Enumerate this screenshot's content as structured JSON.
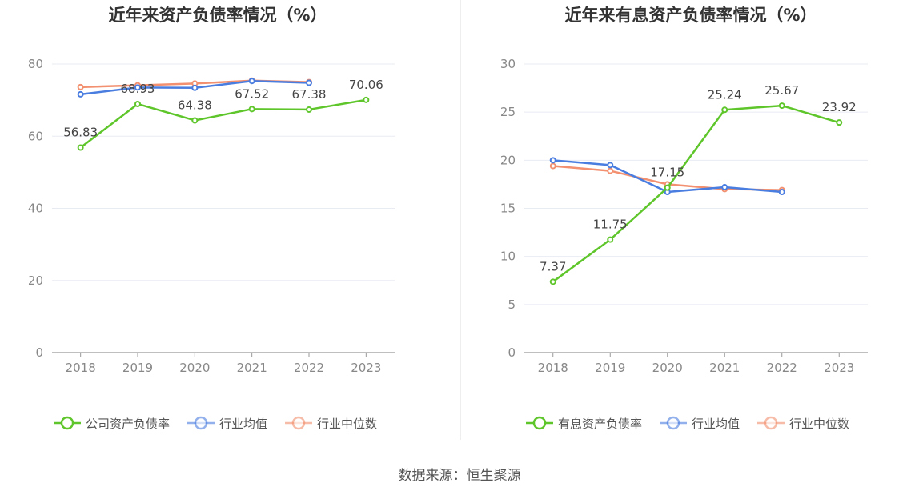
{
  "source_text": "数据来源：恒生聚源",
  "colors": {
    "company": "#5ec62a",
    "avg": "#4a7de0",
    "median": "#f3906f",
    "grid": "#e8ebf2",
    "axis": "#999999"
  },
  "chart_data": [
    {
      "type": "line",
      "title": "近年来资产负债率情况（%）",
      "categories": [
        "2018",
        "2019",
        "2020",
        "2021",
        "2022",
        "2023"
      ],
      "ylim": [
        0,
        80
      ],
      "yticks": [
        0,
        20,
        40,
        60,
        80
      ],
      "grid": true,
      "legend_position": "bottom-center",
      "series": [
        {
          "name": "公司资产负债率",
          "values": [
            56.83,
            68.93,
            64.38,
            67.52,
            67.38,
            70.06
          ],
          "labels": true,
          "color": "#5ec62a"
        },
        {
          "name": "行业均值",
          "values": [
            71.6,
            73.5,
            73.4,
            75.3,
            74.8,
            null
          ],
          "labels": false,
          "color": "#4a7de0"
        },
        {
          "name": "行业中位数",
          "values": [
            73.6,
            74.1,
            74.6,
            75.4,
            75.0,
            null
          ],
          "labels": false,
          "color": "#f3906f"
        }
      ]
    },
    {
      "type": "line",
      "title": "近年来有息资产负债率情况（%）",
      "categories": [
        "2018",
        "2019",
        "2020",
        "2021",
        "2022",
        "2023"
      ],
      "ylim": [
        0,
        30
      ],
      "yticks": [
        0,
        5,
        10,
        15,
        20,
        25,
        30
      ],
      "grid": true,
      "legend_position": "bottom-center",
      "series": [
        {
          "name": "有息资产负债率",
          "values": [
            7.37,
            11.75,
            17.15,
            25.24,
            25.67,
            23.92
          ],
          "labels": true,
          "color": "#5ec62a"
        },
        {
          "name": "行业均值",
          "values": [
            20.0,
            19.5,
            16.7,
            17.2,
            16.7,
            null
          ],
          "labels": false,
          "color": "#4a7de0"
        },
        {
          "name": "行业中位数",
          "values": [
            19.4,
            18.9,
            17.5,
            17.0,
            16.9,
            null
          ],
          "labels": false,
          "color": "#f3906f"
        }
      ]
    }
  ]
}
